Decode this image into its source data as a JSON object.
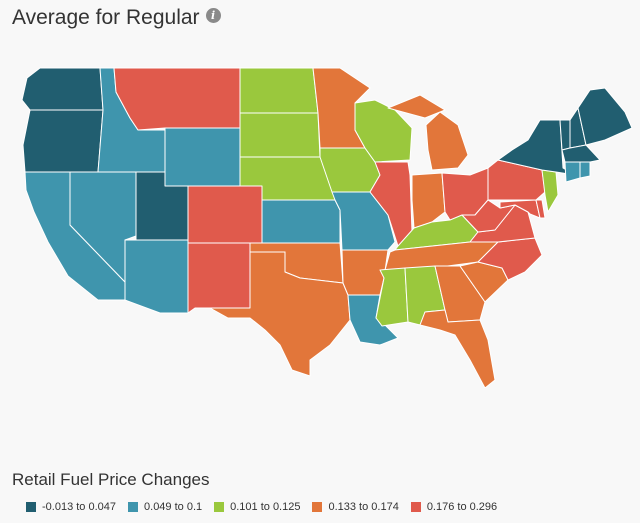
{
  "header": {
    "title": "Average for Regular"
  },
  "legend": {
    "title": "Retail Fuel Price Changes",
    "items": [
      {
        "label": "-0.013 to 0.047",
        "color": "#215e70"
      },
      {
        "label": "0.049 to 0.1",
        "color": "#3f95ad"
      },
      {
        "label": "0.101 to 0.125",
        "color": "#9ac83d"
      },
      {
        "label": "0.133 to 0.174",
        "color": "#e2763a"
      },
      {
        "label": "0.176 to 0.296",
        "color": "#e05a4c"
      }
    ]
  },
  "state_bins": {
    "WA": 0,
    "OR": 0,
    "UT": 0,
    "NY": 0,
    "ME": 0,
    "NH": 0,
    "VT": 0,
    "MA": 0,
    "ID": 1,
    "NV": 1,
    "CA": 1,
    "WY": 1,
    "AZ": 1,
    "KS": 1,
    "MO": 1,
    "LA": 1,
    "CT": 1,
    "RI": 1,
    "ND": 2,
    "SD": 2,
    "NE": 2,
    "IA": 2,
    "WI": 2,
    "KY": 2,
    "MS": 2,
    "AL": 2,
    "NJ": 2,
    "MN": 3,
    "MI": 3,
    "IN": 3,
    "OK": 3,
    "TX": 3,
    "AR": 3,
    "TN": 3,
    "GA": 3,
    "SC": 3,
    "FL": 3,
    "MT": 4,
    "CO": 4,
    "NM": 4,
    "IL": 4,
    "OH": 4,
    "PA": 4,
    "WV": 4,
    "VA": 4,
    "NC": 4,
    "MD": 4,
    "DE": 4
  }
}
